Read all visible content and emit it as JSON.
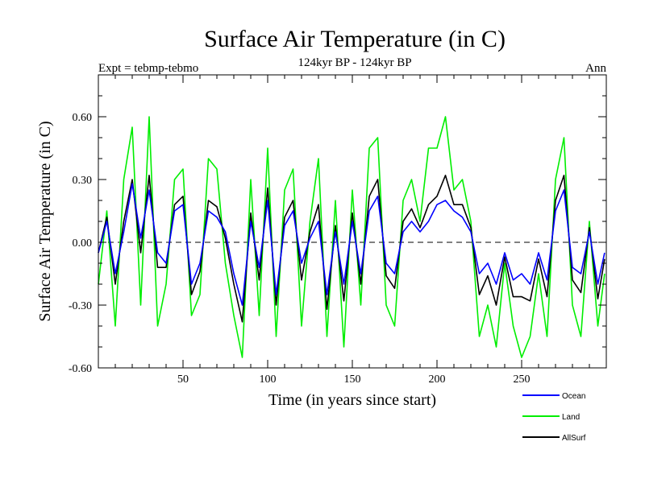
{
  "chart_data": {
    "type": "line",
    "title": "Surface Air Temperature (in C)",
    "subtitle": "124kyr BP - 124kyr BP",
    "left_label": "Expt = tebmp-tebmo",
    "right_label": "Ann",
    "xlabel": "Time (in years since start)",
    "ylabel": "Surface Air Temperature (in C)",
    "xlim": [
      0,
      300
    ],
    "ylim": [
      -0.6,
      0.8
    ],
    "x_ticks": [
      50,
      100,
      150,
      200,
      250
    ],
    "y_tick_values": [
      -0.6,
      -0.3,
      0.0,
      0.3,
      0.6
    ],
    "y_tick_labels": [
      "-0.60",
      "-0.30",
      "0.00",
      "0.30",
      "0.60"
    ],
    "zero_line": true,
    "legend_position": "bottom-right",
    "series": [
      {
        "name": "Ocean",
        "color": "#0000ff",
        "x": [
          0,
          5,
          10,
          15,
          20,
          25,
          30,
          35,
          40,
          45,
          50,
          55,
          60,
          65,
          70,
          75,
          80,
          85,
          90,
          95,
          100,
          105,
          110,
          115,
          120,
          125,
          130,
          135,
          140,
          145,
          150,
          155,
          160,
          165,
          170,
          175,
          180,
          185,
          190,
          195,
          200,
          205,
          210,
          215,
          220,
          225,
          230,
          235,
          240,
          245,
          250,
          255,
          260,
          265,
          270,
          275,
          280,
          285,
          290,
          295,
          299
        ],
        "values": [
          -0.05,
          0.1,
          -0.15,
          0.05,
          0.28,
          0.02,
          0.25,
          -0.05,
          -0.1,
          0.15,
          0.18,
          -0.2,
          -0.1,
          0.15,
          0.12,
          0.05,
          -0.15,
          -0.3,
          0.1,
          -0.12,
          0.2,
          -0.25,
          0.08,
          0.15,
          -0.1,
          0.02,
          0.1,
          -0.25,
          0.05,
          -0.2,
          0.1,
          -0.15,
          0.15,
          0.22,
          -0.1,
          -0.15,
          0.05,
          0.1,
          0.05,
          0.1,
          0.18,
          0.2,
          0.15,
          0.12,
          0.05,
          -0.15,
          -0.1,
          -0.2,
          -0.05,
          -0.18,
          -0.15,
          -0.2,
          -0.05,
          -0.18,
          0.15,
          0.25,
          -0.12,
          -0.15,
          0.05,
          -0.2,
          -0.05
        ]
      },
      {
        "name": "Land",
        "color": "#00ee00",
        "x": [
          0,
          5,
          10,
          15,
          20,
          25,
          30,
          35,
          40,
          45,
          50,
          55,
          60,
          65,
          70,
          75,
          80,
          85,
          90,
          95,
          100,
          105,
          110,
          115,
          120,
          125,
          130,
          135,
          140,
          145,
          150,
          155,
          160,
          165,
          170,
          175,
          180,
          185,
          190,
          195,
          200,
          205,
          210,
          215,
          220,
          225,
          230,
          235,
          240,
          245,
          250,
          255,
          260,
          265,
          270,
          275,
          280,
          285,
          290,
          295,
          299
        ],
        "values": [
          -0.2,
          0.15,
          -0.4,
          0.3,
          0.55,
          -0.3,
          0.6,
          -0.4,
          -0.2,
          0.3,
          0.35,
          -0.35,
          -0.25,
          0.4,
          0.35,
          -0.1,
          -0.35,
          -0.55,
          0.3,
          -0.35,
          0.45,
          -0.45,
          0.25,
          0.35,
          -0.4,
          0.1,
          0.4,
          -0.45,
          0.2,
          -0.5,
          0.25,
          -0.3,
          0.45,
          0.5,
          -0.3,
          -0.4,
          0.2,
          0.3,
          0.1,
          0.45,
          0.45,
          0.6,
          0.25,
          0.3,
          0.1,
          -0.45,
          -0.3,
          -0.5,
          -0.1,
          -0.4,
          -0.55,
          -0.45,
          -0.15,
          -0.45,
          0.3,
          0.5,
          -0.3,
          -0.45,
          0.1,
          -0.4,
          -0.15
        ]
      },
      {
        "name": "AllSurf",
        "color": "#000000",
        "x": [
          0,
          5,
          10,
          15,
          20,
          25,
          30,
          35,
          40,
          45,
          50,
          55,
          60,
          65,
          70,
          75,
          80,
          85,
          90,
          95,
          100,
          105,
          110,
          115,
          120,
          125,
          130,
          135,
          140,
          145,
          150,
          155,
          160,
          165,
          170,
          175,
          180,
          185,
          190,
          195,
          200,
          205,
          210,
          215,
          220,
          225,
          230,
          235,
          240,
          245,
          250,
          255,
          260,
          265,
          270,
          275,
          280,
          285,
          290,
          295,
          299
        ],
        "values": [
          -0.05,
          0.12,
          -0.2,
          0.1,
          0.3,
          -0.05,
          0.32,
          -0.12,
          -0.12,
          0.18,
          0.22,
          -0.25,
          -0.14,
          0.2,
          0.17,
          0.02,
          -0.2,
          -0.38,
          0.14,
          -0.18,
          0.26,
          -0.3,
          0.12,
          0.2,
          -0.18,
          0.05,
          0.18,
          -0.32,
          0.08,
          -0.28,
          0.14,
          -0.2,
          0.22,
          0.3,
          -0.16,
          -0.22,
          0.1,
          0.16,
          0.07,
          0.18,
          0.22,
          0.32,
          0.18,
          0.18,
          0.07,
          -0.25,
          -0.16,
          -0.3,
          -0.07,
          -0.26,
          -0.26,
          -0.28,
          -0.08,
          -0.26,
          0.2,
          0.32,
          -0.18,
          -0.24,
          0.07,
          -0.27,
          -0.08
        ]
      }
    ]
  }
}
